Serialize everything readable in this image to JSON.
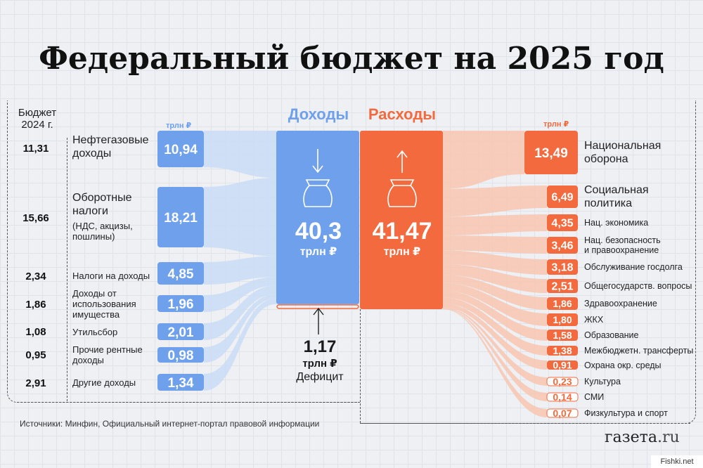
{
  "title": "Федеральный бюджет на 2025 год",
  "budget_2024_header": "Бюджет\n2024 г.",
  "unit_small": "трлн ₽",
  "income": {
    "header": "Доходы",
    "total": "40,3",
    "total_unit": "трлн ₽",
    "color": "#6ea0ec"
  },
  "expense": {
    "header": "Расходы",
    "total": "41,47",
    "total_unit": "трлн ₽",
    "color": "#f26a3d"
  },
  "deficit": {
    "value": "1,17",
    "unit": "трлн ₽",
    "label": "Дефицит"
  },
  "sources": "Источники: Минфин, Официальный интернет-портал правовой информации",
  "brand": {
    "name": "газета",
    "tld": ".ru"
  },
  "watermark": "Fishki.net",
  "chart_data": [
    {
      "type": "bar",
      "title": "Доходы",
      "unit": "трлн ₽",
      "categories": [
        "Нефтегазовые доходы",
        "Оборотные налоги (НДС, акцизы, пошлины)",
        "Налоги на доходы",
        "Доходы от использования имущества",
        "Утильсбор",
        "Прочие рентные доходы",
        "Другие доходы"
      ],
      "category_lines": [
        [
          "Нефтегазовые",
          "доходы"
        ],
        [
          "Оборотные",
          "налоги"
        ],
        [
          "Налоги на доходы"
        ],
        [
          "Доходы от",
          "использования",
          "имущества"
        ],
        [
          "Утильсбор"
        ],
        [
          "Прочие рентные",
          "доходы"
        ],
        [
          "Другие доходы"
        ]
      ],
      "category_sub": [
        "",
        "(НДС, акцизы,\nпошлины)",
        "",
        "",
        "",
        "",
        ""
      ],
      "series": [
        {
          "name": "2025",
          "values": [
            10.94,
            18.21,
            4.85,
            1.96,
            2.01,
            0.98,
            1.34
          ],
          "labels": [
            "10,94",
            "18,21",
            "4,85",
            "1,96",
            "2,01",
            "0,98",
            "1,34"
          ]
        },
        {
          "name": "Бюджет 2024 г.",
          "values": [
            11.31,
            15.66,
            2.34,
            1.86,
            1.08,
            0.95,
            2.91
          ],
          "labels": [
            "11,31",
            "15,66",
            "2,34",
            "1,86",
            "1,08",
            "0,95",
            "2,91"
          ]
        }
      ],
      "total": 40.3
    },
    {
      "type": "bar",
      "title": "Расходы",
      "unit": "трлн ₽",
      "categories": [
        "Национальная оборона",
        "Социальная политика",
        "Нац. экономика",
        "Нац. безопасность и правоохранение",
        "Обслуживание госдолга",
        "Общегосударств. вопросы",
        "Здравоохранение",
        "ЖКХ",
        "Образование",
        "Межбюджетн. трансферты",
        "Охрана окр. среды",
        "Культура",
        "СМИ",
        "Физкультура и спорт"
      ],
      "category_lines": [
        [
          "Национальная",
          "оборона"
        ],
        [
          "Социальная",
          "политика"
        ],
        [
          "Нац. экономика"
        ],
        [
          "Нац. безопасность",
          "и правоохранение"
        ],
        [
          "Обслуживание госдолга"
        ],
        [
          "Общегосударств. вопросы"
        ],
        [
          "Здравоохранение"
        ],
        [
          "ЖКХ"
        ],
        [
          "Образование"
        ],
        [
          "Межбюджетн. трансферты"
        ],
        [
          "Охрана окр. среды"
        ],
        [
          "Культура"
        ],
        [
          "СМИ"
        ],
        [
          "Физкультура и спорт"
        ]
      ],
      "values": [
        13.49,
        6.49,
        4.35,
        3.46,
        3.18,
        2.51,
        1.86,
        1.8,
        1.58,
        1.38,
        0.91,
        0.23,
        0.14,
        0.07
      ],
      "labels": [
        "13,49",
        "6,49",
        "4,35",
        "3,46",
        "3,18",
        "2,51",
        "1,86",
        "1,80",
        "1,58",
        "1,38",
        "0,91",
        "0,23",
        "0,14",
        "0,07"
      ],
      "total": 41.47
    }
  ]
}
